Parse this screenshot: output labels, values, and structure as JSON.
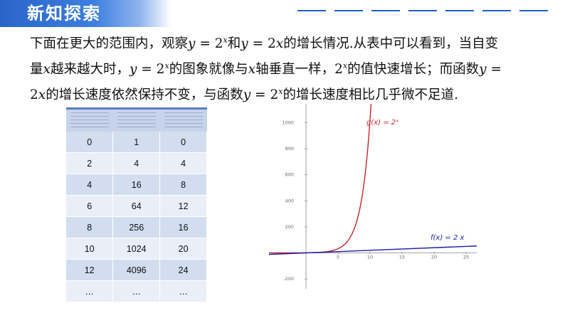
{
  "header": {
    "title": "新知探索"
  },
  "paragraph": {
    "line1_a": "下面在更大的范围内，观察",
    "f1_y": "y",
    "f1_eq": " = 2",
    "f1_sup": "x",
    "line1_b": "和",
    "f2_y": "y",
    "f2_eq": " = 2",
    "f2_x": "x",
    "line1_c": "的增长情况.从表中可以看到，当自变",
    "line2_a": "量",
    "line2_x": "x",
    "line2_b": "越来越大时，",
    "f3_y": "y",
    "f3_eq": " = 2",
    "f3_sup": "x",
    "line2_c": "的图象就像与",
    "line2_x2": "x",
    "line2_d": "轴垂直一样，",
    "f4_base": "2",
    "f4_sup": "x",
    "line2_e": "的值快速增长；而函数",
    "f5_y": "y",
    "f5_eq": " =",
    "line3_a": "2",
    "line3_x": "x",
    "line3_b": "的增长速度依然保持不变，与函数",
    "f6_y": "y",
    "f6_eq": " = 2",
    "f6_sup": "x",
    "line3_c": "的增长速度相比几乎微不足道."
  },
  "table": {
    "rows": [
      [
        "0",
        "1",
        "0"
      ],
      [
        "2",
        "4",
        "4"
      ],
      [
        "4",
        "16",
        "8"
      ],
      [
        "6",
        "64",
        "12"
      ],
      [
        "8",
        "256",
        "16"
      ],
      [
        "10",
        "1024",
        "20"
      ],
      [
        "12",
        "4096",
        "24"
      ],
      [
        "…",
        "…",
        "…"
      ]
    ]
  },
  "chart_data": {
    "type": "line",
    "x_ticks": [
      "5",
      "10",
      "15",
      "20",
      "25"
    ],
    "y_ticks": [
      "1000",
      "800",
      "600",
      "400",
      "200",
      "-200"
    ],
    "xlim": [
      -6,
      28
    ],
    "ylim": [
      -250,
      1150
    ],
    "series": [
      {
        "name": "g(x) = 2ˣ",
        "color": "#c0262b",
        "x": [
          -6,
          -4,
          -2,
          0,
          2,
          4,
          6,
          7,
          8,
          8.5,
          9,
          9.5,
          10,
          10.2
        ],
        "y": [
          0.016,
          0.063,
          0.25,
          1,
          4,
          16,
          64,
          128,
          256,
          362,
          512,
          724,
          1024,
          1176
        ]
      },
      {
        "name": "f(x) = 2 x",
        "color": "#1b1fa8",
        "x": [
          -6,
          28
        ],
        "y": [
          -12,
          56
        ]
      }
    ],
    "label_colors": {
      "g": "#c0262b",
      "f": "#1b1fa8"
    }
  }
}
